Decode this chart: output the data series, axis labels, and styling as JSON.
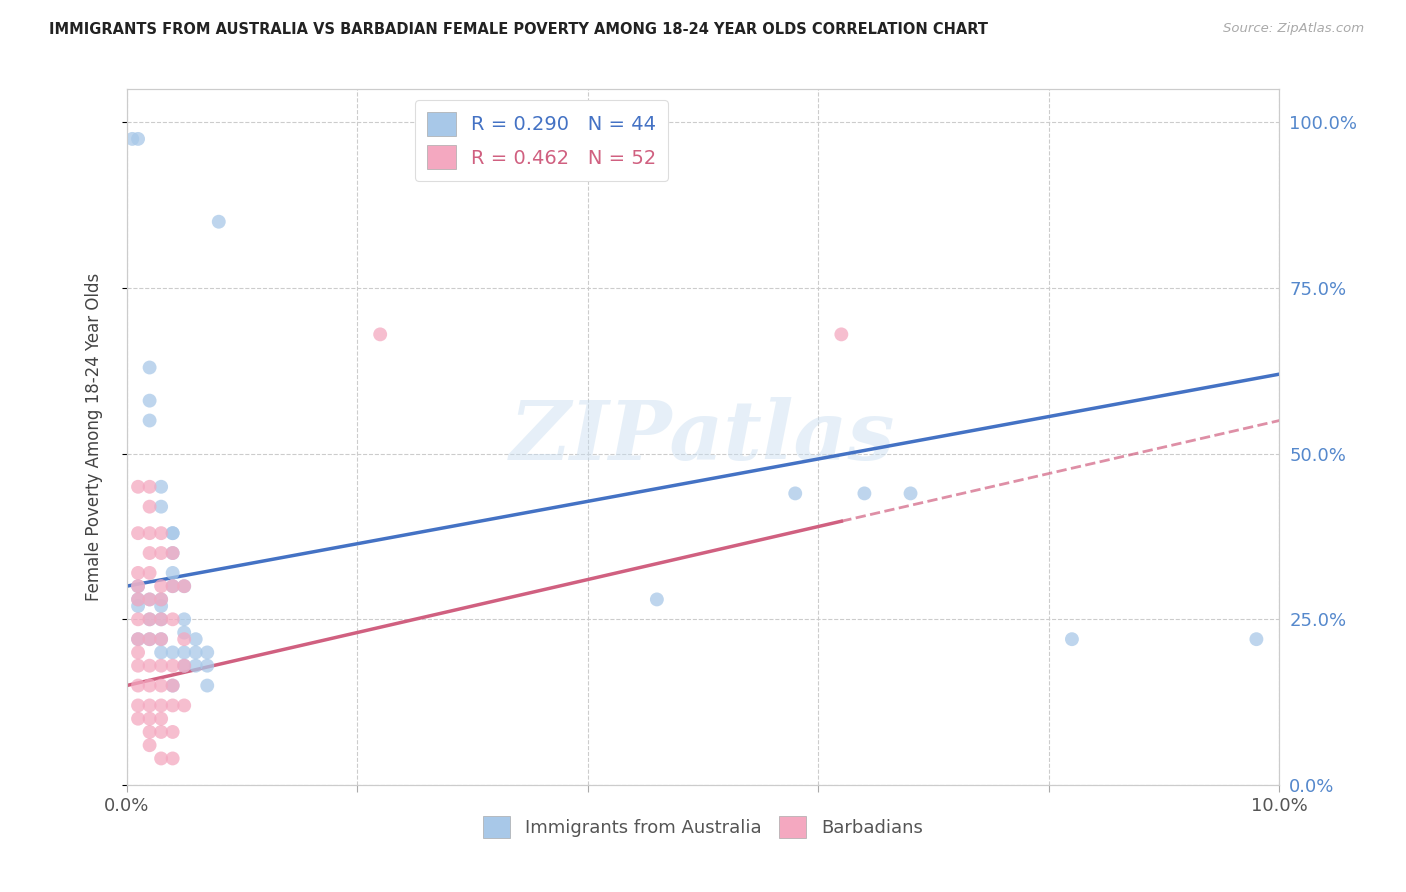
{
  "title": "IMMIGRANTS FROM AUSTRALIA VS BARBADIAN FEMALE POVERTY AMONG 18-24 YEAR OLDS CORRELATION CHART",
  "source": "Source: ZipAtlas.com",
  "ylabel": "Female Poverty Among 18-24 Year Olds",
  "xlim": [
    0.0,
    0.1
  ],
  "ylim": [
    0.0,
    1.05
  ],
  "right_yticks": [
    0.0,
    0.25,
    0.5,
    0.75,
    1.0
  ],
  "right_yticklabels": [
    "0.0%",
    "25.0%",
    "50.0%",
    "75.0%",
    "100.0%"
  ],
  "xticks": [
    0.0,
    0.02,
    0.04,
    0.06,
    0.08,
    0.1
  ],
  "xticklabels": [
    "0.0%",
    "",
    "",
    "",
    "",
    "10.0%"
  ],
  "blue_color": "#a8c8e8",
  "blue_line_color": "#4472c4",
  "pink_color": "#f4a8c0",
  "pink_line_color": "#d06080",
  "blue_label": "Immigrants from Australia",
  "pink_label": "Barbadians",
  "R_blue": 0.29,
  "N_blue": 44,
  "R_pink": 0.462,
  "N_pink": 52,
  "watermark": "ZIPatlas",
  "blue_line_x0": 0.0,
  "blue_line_y0": 0.3,
  "blue_line_x1": 0.1,
  "blue_line_y1": 0.62,
  "pink_line_x0": 0.0,
  "pink_line_y0": 0.15,
  "pink_line_x1": 0.1,
  "pink_line_y1": 0.55,
  "blue_points": [
    [
      0.0005,
      0.975
    ],
    [
      0.001,
      0.975
    ],
    [
      0.008,
      0.85
    ],
    [
      0.002,
      0.63
    ],
    [
      0.002,
      0.58
    ],
    [
      0.002,
      0.55
    ],
    [
      0.003,
      0.45
    ],
    [
      0.003,
      0.42
    ],
    [
      0.004,
      0.38
    ],
    [
      0.004,
      0.38
    ],
    [
      0.004,
      0.35
    ],
    [
      0.004,
      0.32
    ],
    [
      0.004,
      0.3
    ],
    [
      0.005,
      0.3
    ],
    [
      0.001,
      0.3
    ],
    [
      0.001,
      0.28
    ],
    [
      0.002,
      0.28
    ],
    [
      0.003,
      0.28
    ],
    [
      0.001,
      0.27
    ],
    [
      0.002,
      0.25
    ],
    [
      0.003,
      0.27
    ],
    [
      0.003,
      0.25
    ],
    [
      0.005,
      0.25
    ],
    [
      0.005,
      0.23
    ],
    [
      0.001,
      0.22
    ],
    [
      0.002,
      0.22
    ],
    [
      0.003,
      0.22
    ],
    [
      0.003,
      0.2
    ],
    [
      0.004,
      0.2
    ],
    [
      0.005,
      0.2
    ],
    [
      0.006,
      0.2
    ],
    [
      0.006,
      0.22
    ],
    [
      0.007,
      0.2
    ],
    [
      0.007,
      0.18
    ],
    [
      0.006,
      0.18
    ],
    [
      0.007,
      0.15
    ],
    [
      0.005,
      0.18
    ],
    [
      0.004,
      0.15
    ],
    [
      0.046,
      0.28
    ],
    [
      0.058,
      0.44
    ],
    [
      0.064,
      0.44
    ],
    [
      0.068,
      0.44
    ],
    [
      0.082,
      0.22
    ],
    [
      0.098,
      0.22
    ]
  ],
  "pink_points": [
    [
      0.001,
      0.45
    ],
    [
      0.001,
      0.38
    ],
    [
      0.001,
      0.32
    ],
    [
      0.001,
      0.3
    ],
    [
      0.001,
      0.28
    ],
    [
      0.001,
      0.25
    ],
    [
      0.001,
      0.22
    ],
    [
      0.001,
      0.2
    ],
    [
      0.001,
      0.18
    ],
    [
      0.001,
      0.15
    ],
    [
      0.001,
      0.12
    ],
    [
      0.001,
      0.1
    ],
    [
      0.002,
      0.45
    ],
    [
      0.002,
      0.42
    ],
    [
      0.002,
      0.38
    ],
    [
      0.002,
      0.35
    ],
    [
      0.002,
      0.32
    ],
    [
      0.002,
      0.28
    ],
    [
      0.002,
      0.25
    ],
    [
      0.002,
      0.22
    ],
    [
      0.002,
      0.18
    ],
    [
      0.002,
      0.15
    ],
    [
      0.002,
      0.12
    ],
    [
      0.002,
      0.1
    ],
    [
      0.002,
      0.08
    ],
    [
      0.002,
      0.06
    ],
    [
      0.003,
      0.38
    ],
    [
      0.003,
      0.35
    ],
    [
      0.003,
      0.3
    ],
    [
      0.003,
      0.28
    ],
    [
      0.003,
      0.25
    ],
    [
      0.003,
      0.22
    ],
    [
      0.003,
      0.18
    ],
    [
      0.003,
      0.15
    ],
    [
      0.003,
      0.12
    ],
    [
      0.003,
      0.1
    ],
    [
      0.003,
      0.08
    ],
    [
      0.003,
      0.04
    ],
    [
      0.004,
      0.35
    ],
    [
      0.004,
      0.3
    ],
    [
      0.004,
      0.25
    ],
    [
      0.004,
      0.18
    ],
    [
      0.004,
      0.15
    ],
    [
      0.004,
      0.12
    ],
    [
      0.004,
      0.08
    ],
    [
      0.004,
      0.04
    ],
    [
      0.005,
      0.3
    ],
    [
      0.005,
      0.22
    ],
    [
      0.005,
      0.18
    ],
    [
      0.005,
      0.12
    ],
    [
      0.022,
      0.68
    ],
    [
      0.062,
      0.68
    ]
  ]
}
